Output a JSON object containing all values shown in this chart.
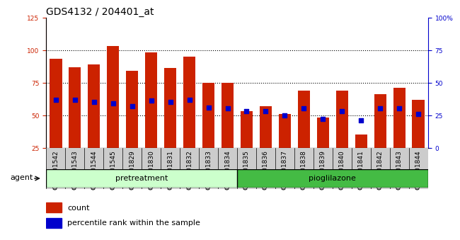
{
  "title": "GDS4132 / 204401_at",
  "categories": [
    "GSM201542",
    "GSM201543",
    "GSM201544",
    "GSM201545",
    "GSM201829",
    "GSM201830",
    "GSM201831",
    "GSM201832",
    "GSM201833",
    "GSM201834",
    "GSM201835",
    "GSM201836",
    "GSM201837",
    "GSM201838",
    "GSM201839",
    "GSM201840",
    "GSM201841",
    "GSM201842",
    "GSM201843",
    "GSM201844"
  ],
  "count_values": [
    93,
    87,
    89,
    103,
    84,
    98,
    86,
    95,
    75,
    75,
    53,
    57,
    51,
    69,
    48,
    69,
    35,
    66,
    71,
    62
  ],
  "percentile_values": [
    62,
    62,
    60,
    59,
    57,
    61,
    60,
    62,
    56,
    55,
    53,
    53,
    50,
    55,
    47,
    53,
    46,
    55,
    55,
    51
  ],
  "pretreatment_count": 10,
  "pioglilazone_count": 10,
  "ylim_left": [
    25,
    125
  ],
  "yticks_left": [
    25,
    50,
    75,
    100,
    125
  ],
  "ytick_labels_right": [
    "0",
    "25",
    "50",
    "75",
    "100%"
  ],
  "bar_color": "#cc2200",
  "dot_color": "#0000cc",
  "title_fontsize": 10,
  "tick_fontsize": 6.5,
  "label_fontsize": 8,
  "agent_label": "agent",
  "pretreatment_label": "pretreatment",
  "pioglilazone_label": "pioglilazone",
  "legend_count": "count",
  "legend_percentile": "percentile rank within the sample",
  "pretreatment_color": "#ccffcc",
  "pioglilazone_color": "#44bb44",
  "band_border_color": "#000000"
}
